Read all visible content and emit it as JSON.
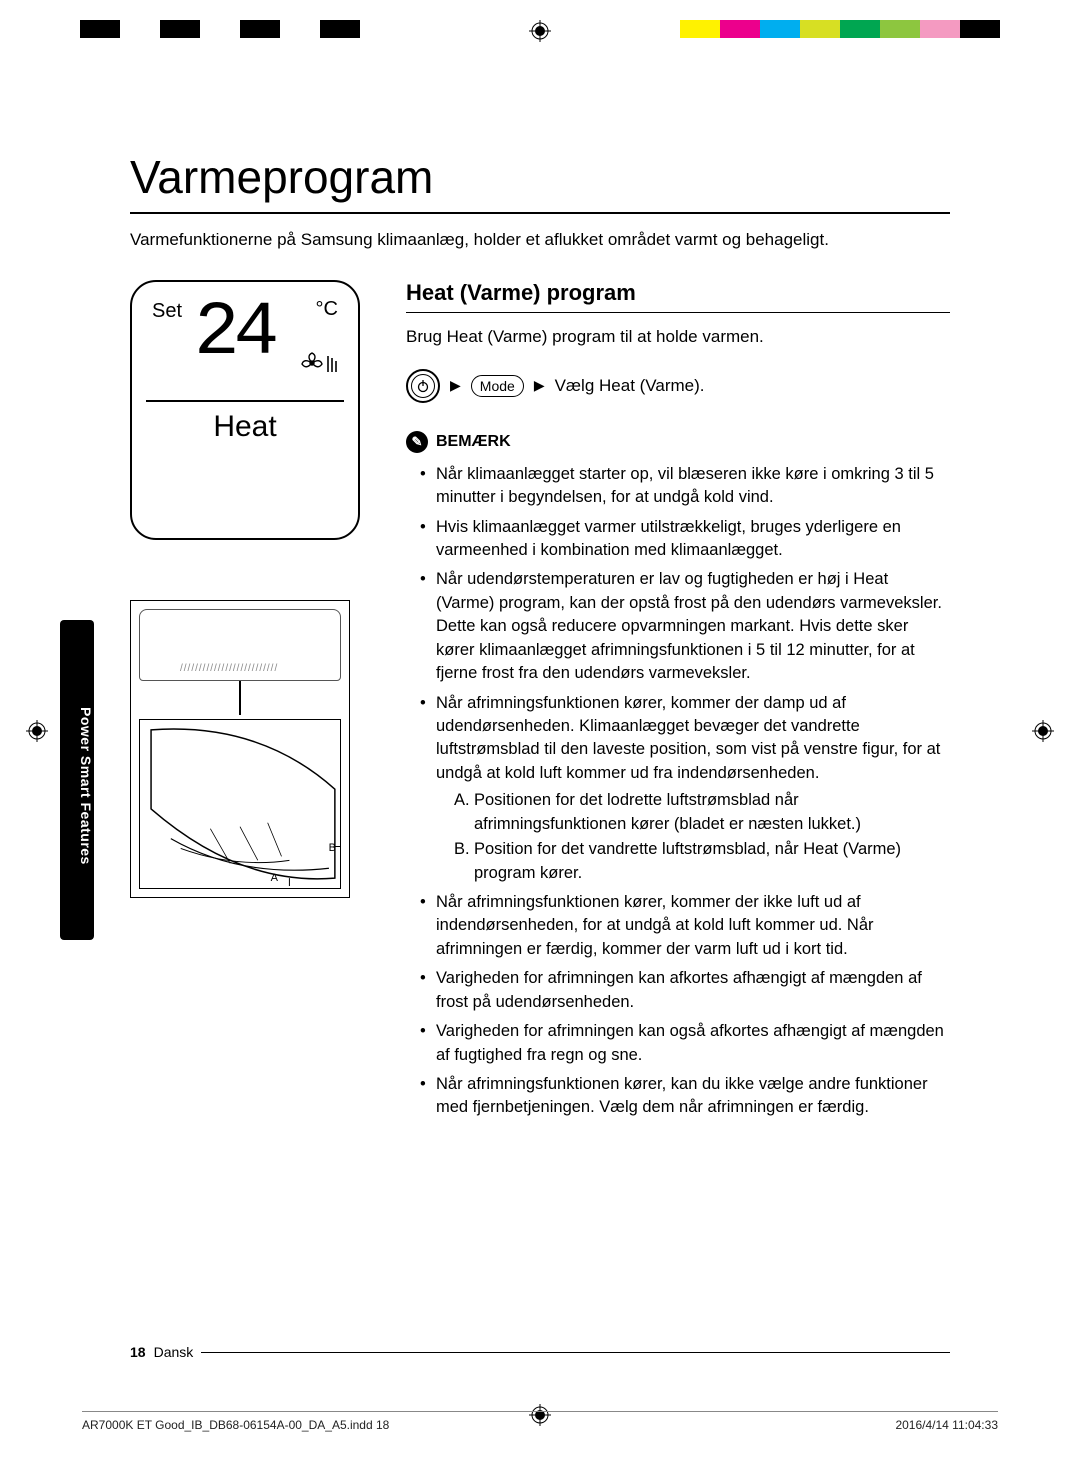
{
  "crop_colors_bw": [
    "#000000",
    "#ffffff",
    "#000000",
    "#ffffff",
    "#000000",
    "#ffffff",
    "#000000"
  ],
  "crop_colors_rgb": [
    "#fff200",
    "#ec008c",
    "#00aeef",
    "#d7df23",
    "#00a651",
    "#8dc63f",
    "#f49ac1",
    "#000000"
  ],
  "title": "Varmeprogram",
  "intro": "Varmefunktionerne på Samsung klimaanlæg, holder et aflukket området varmt og behageligt.",
  "side_tab": "Power Smart Features",
  "lcd": {
    "set_label": "Set",
    "temp": "24",
    "unit": "°C",
    "mode": "Heat"
  },
  "diagram": {
    "label_a": "A",
    "label_b": "B"
  },
  "section": {
    "heading": "Heat (Varme) program",
    "sub": "Brug Heat (Varme) program til at holde varmen.",
    "mode_btn": "Mode",
    "select_text": "Vælg Heat (Varme).",
    "note_label": "BEMÆRK",
    "notes": [
      "Når klimaanlægget starter op, vil blæseren ikke køre i omkring 3 til 5 minutter i begyndelsen, for at undgå kold vind.",
      "Hvis klimaanlægget varmer utilstrækkeligt, bruges yderligere en varmeenhed i kombination med klimaanlægget.",
      "Når udendørstemperaturen er lav og fugtigheden er høj i Heat (Varme) program, kan der opstå frost på den udendørs varmeveksler. Dette kan også reducere opvarmningen markant. Hvis dette sker kører klimaanlægget afrimningsfunktionen i 5 til 12 minutter, for at fjerne frost fra den udendørs varmeveksler.",
      "Når afrimningsfunktionen kører, kommer der damp ud af udendørsenheden. Klimaanlægget bevæger det vandrette luftstrømsblad til den laveste position, som vist på venstre figur, for at undgå at kold luft kommer ud fra indendørsenheden.",
      "Når afrimningsfunktionen kører, kommer der ikke luft ud af indendørsenheden, for at undgå at kold luft kommer ud. Når afrimningen er færdig, kommer der varm luft ud i kort tid.",
      "Varigheden for afrimningen kan afkortes afhængigt af mængden af frost på udendørsenheden.",
      "Varigheden for afrimningen kan også afkortes afhængigt af mængden af fugtighed fra regn og sne.",
      "Når afrimningsfunktionen kører, kan du ikke vælge andre funktioner med fjernbetjeningen. Vælg dem når afrimningen er færdig."
    ],
    "subnotes": [
      {
        "tag": "A.",
        "text": "Positionen for det lodrette luftstrømsblad når afrimningsfunktionen kører (bladet er næsten lukket.)"
      },
      {
        "tag": "B.",
        "text": "Position for det vandrette luftstrømsblad, når Heat (Varme) program kører."
      }
    ]
  },
  "footer": {
    "page_num": "18",
    "lang": "Dansk"
  },
  "print_footer": {
    "file": "AR7000K ET Good_IB_DB68-06154A-00_DA_A5.indd   18",
    "timestamp": "2016/4/14   11:04:33"
  }
}
